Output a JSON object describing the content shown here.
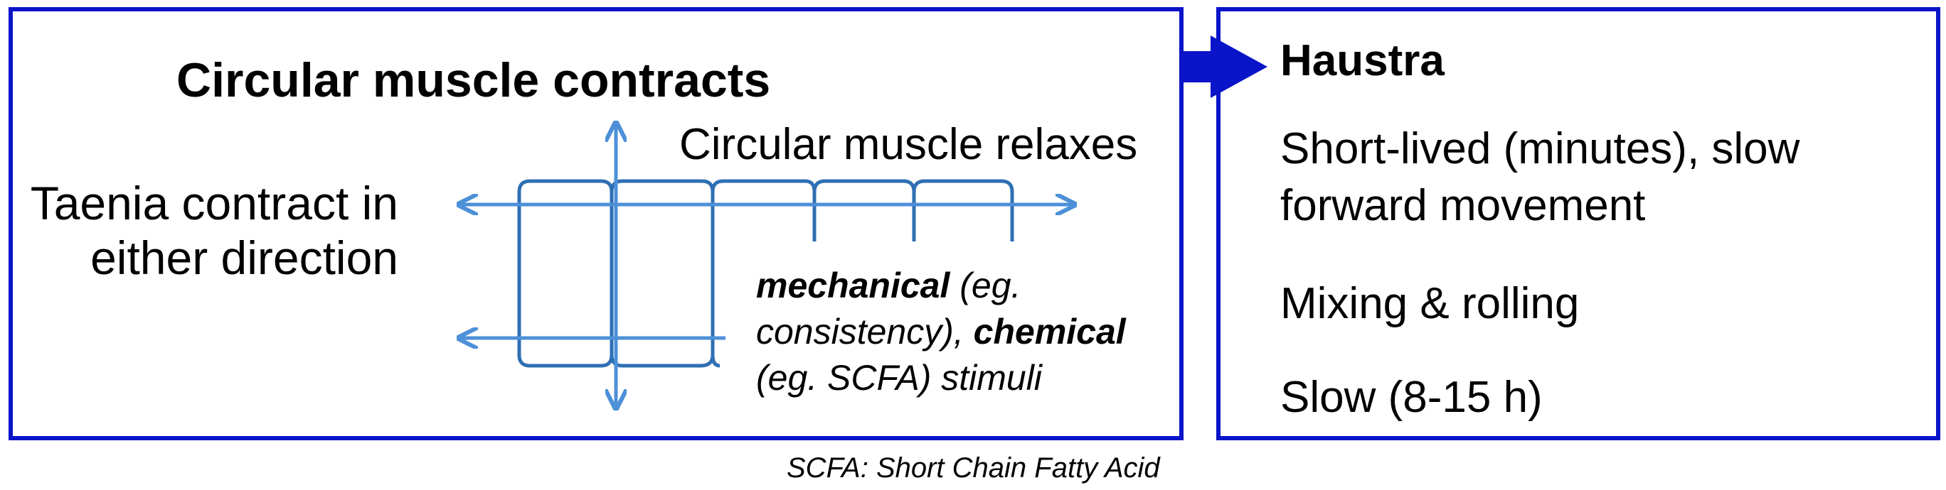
{
  "left_panel": {
    "title": "Circular muscle contracts",
    "relax_label": "Circular muscle relaxes",
    "taenia_label": "Taenia contract in either direction",
    "stimuli": {
      "part1_bold": "mechanical",
      "part2": " (eg. consistency), ",
      "part3_bold": "chemical",
      "part4": " (eg. SCFA) stimuli"
    }
  },
  "right_panel": {
    "title": "Haustra",
    "line1": "Short-lived (minutes), slow",
    "line2": "forward movement",
    "line3": "Mixing & rolling",
    "line4": "Slow (8-15 h)"
  },
  "footnote": "SCFA: Short Chain Fatty Acid",
  "colors": {
    "border": "#0a14c8",
    "arrow_blue": "#0a14c8",
    "diagram_arrow": "#4d90d8",
    "diagram_lines": "#2f6fb3"
  }
}
